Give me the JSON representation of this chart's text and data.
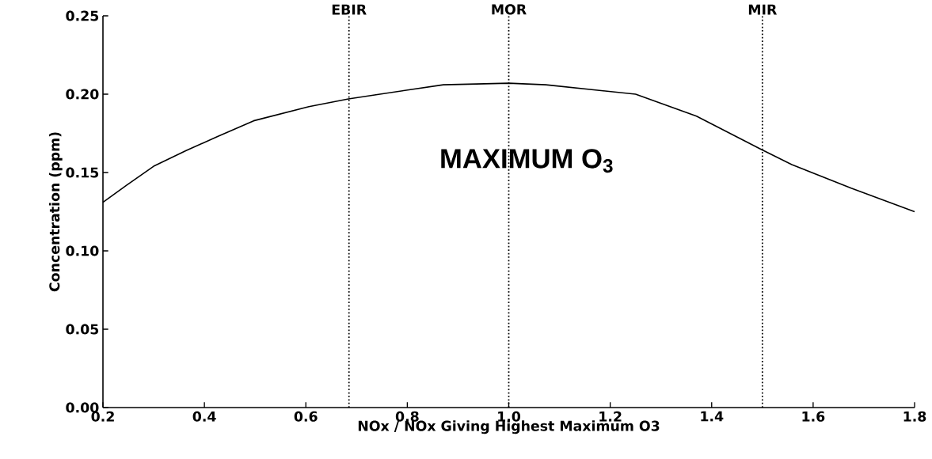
{
  "chart_data": {
    "type": "line",
    "xlabel": "NOx / NOx Giving Highest Maximum O3",
    "ylabel": "Concentration (ppm)",
    "annotations": [
      "MAXIMUM O$_{3}$"
    ],
    "x": [
      0.2,
      0.247,
      0.3,
      0.364,
      0.426,
      0.497,
      0.606,
      0.684,
      0.746,
      0.871,
      1.0,
      1.073,
      1.25,
      1.37,
      1.496,
      1.558,
      1.675,
      1.8
    ],
    "series": [
      {
        "color": "#000000",
        "values": [
          0.131,
          0.142,
          0.154,
          0.164,
          0.173,
          0.183,
          0.192,
          0.197,
          0.2,
          0.206,
          0.207,
          0.206,
          0.2,
          0.186,
          0.165,
          0.155,
          0.14,
          0.125
        ]
      }
    ],
    "xlim": [
      0.2,
      1.8
    ],
    "ylim": [
      0,
      0.25
    ],
    "xticks": [
      0.2,
      0.4,
      0.6,
      0.8,
      {
        "value": 1,
        "label": "1.0"
      },
      1.2,
      1.4,
      1.6,
      1.8
    ],
    "yticks": [
      {
        "value": 0,
        "label": "0.00"
      },
      0.05,
      {
        "value": 0.1,
        "label": "0.10"
      },
      0.15,
      {
        "value": 0.2,
        "label": "0.20"
      },
      0.25
    ],
    "ref_lines": [
      {
        "axis": "x",
        "value": 0.685,
        "label": "EBIR",
        "line_style": "dotted"
      },
      {
        "axis": "x",
        "value": 1.0,
        "label": "MOR",
        "line_style": "dotted"
      },
      {
        "axis": "x",
        "value": 1.5,
        "label": "MIR",
        "line_style": "dotted"
      }
    ],
    "grid": false
  }
}
